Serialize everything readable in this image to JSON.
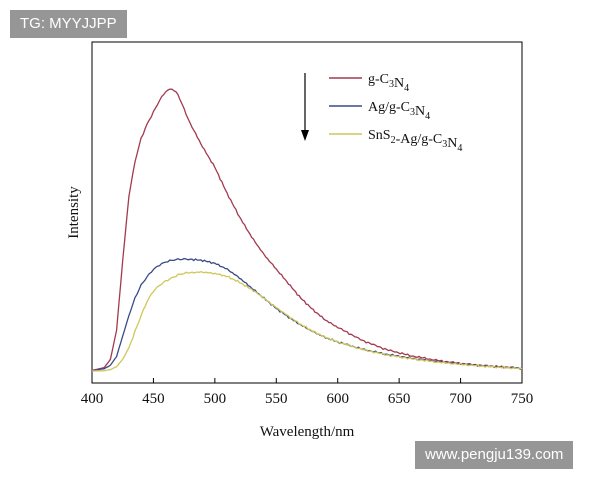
{
  "watermarks": {
    "top_left": "TG: MYYJJPP",
    "bottom_right": "www.pengju139.com"
  },
  "colors": {
    "g_C3N4": "#a23a4e",
    "Ag_g_C3N4": "#3a4a86",
    "SnS2_Ag_g_C3N4": "#cfc75a",
    "axis": "#000000"
  },
  "chart_data": {
    "type": "line",
    "title": "",
    "xlabel": "Wavelength/nm",
    "ylabel": "Intensity",
    "xlim": [
      400,
      750
    ],
    "ylim": [
      0,
      100
    ],
    "x_ticks": [
      "400",
      "450",
      "500",
      "550",
      "600",
      "650",
      "700",
      "750"
    ],
    "y_ticks": [],
    "legend_position": "top-right",
    "annotation": "downward arrow",
    "x": [
      400,
      410,
      415,
      420,
      425,
      430,
      435,
      440,
      445,
      450,
      455,
      460,
      465,
      470,
      475,
      480,
      490,
      500,
      510,
      520,
      530,
      540,
      550,
      560,
      570,
      580,
      590,
      600,
      620,
      640,
      660,
      680,
      700,
      720,
      750
    ],
    "series": [
      {
        "name": "g-C3N4",
        "label_parts": [
          [
            "g-C",
            "n"
          ],
          [
            "3",
            "sub"
          ],
          [
            "N",
            "n"
          ],
          [
            "4",
            "sub"
          ]
        ],
        "values": [
          0.2,
          1.2,
          4,
          14,
          38,
          60,
          72,
          80,
          85,
          89,
          93,
          96,
          97,
          95,
          90,
          85,
          77,
          70,
          61,
          53,
          46,
          40,
          35,
          30,
          25,
          21,
          17.5,
          15,
          10.5,
          7.3,
          5.2,
          3.7,
          2.6,
          1.8,
          1.0
        ]
      },
      {
        "name": "Ag/g-C3N4",
        "label_parts": [
          [
            "Ag/g-C",
            "n"
          ],
          [
            "3",
            "sub"
          ],
          [
            "N",
            "n"
          ],
          [
            "4",
            "sub"
          ]
        ],
        "values": [
          0.1,
          0.8,
          2,
          5,
          12,
          19,
          25,
          29.5,
          32.5,
          35,
          36.5,
          37.5,
          38,
          38.3,
          38.4,
          38.4,
          38,
          37,
          35,
          32,
          28.5,
          25,
          21.5,
          18.5,
          15.8,
          13.5,
          11.5,
          10,
          7.5,
          5.7,
          4.4,
          3.3,
          2.4,
          1.7,
          0.9
        ]
      },
      {
        "name": "SnS2-Ag/g-C3N4",
        "label_parts": [
          [
            "SnS",
            "n"
          ],
          [
            "2",
            "sub"
          ],
          [
            "-Ag/g-C",
            "n"
          ],
          [
            "3",
            "sub"
          ],
          [
            "N",
            "n"
          ],
          [
            "4",
            "sub"
          ]
        ],
        "values": [
          0,
          0.1,
          0.5,
          1.5,
          4,
          8,
          13.5,
          19,
          24,
          27.5,
          29.5,
          31,
          32,
          33,
          33.5,
          33.8,
          34,
          33.5,
          32.5,
          30.5,
          28,
          25,
          21.8,
          18.8,
          16,
          13.6,
          11.6,
          10,
          7.4,
          5.5,
          4.2,
          3.1,
          2.3,
          1.6,
          0.8
        ]
      }
    ]
  }
}
